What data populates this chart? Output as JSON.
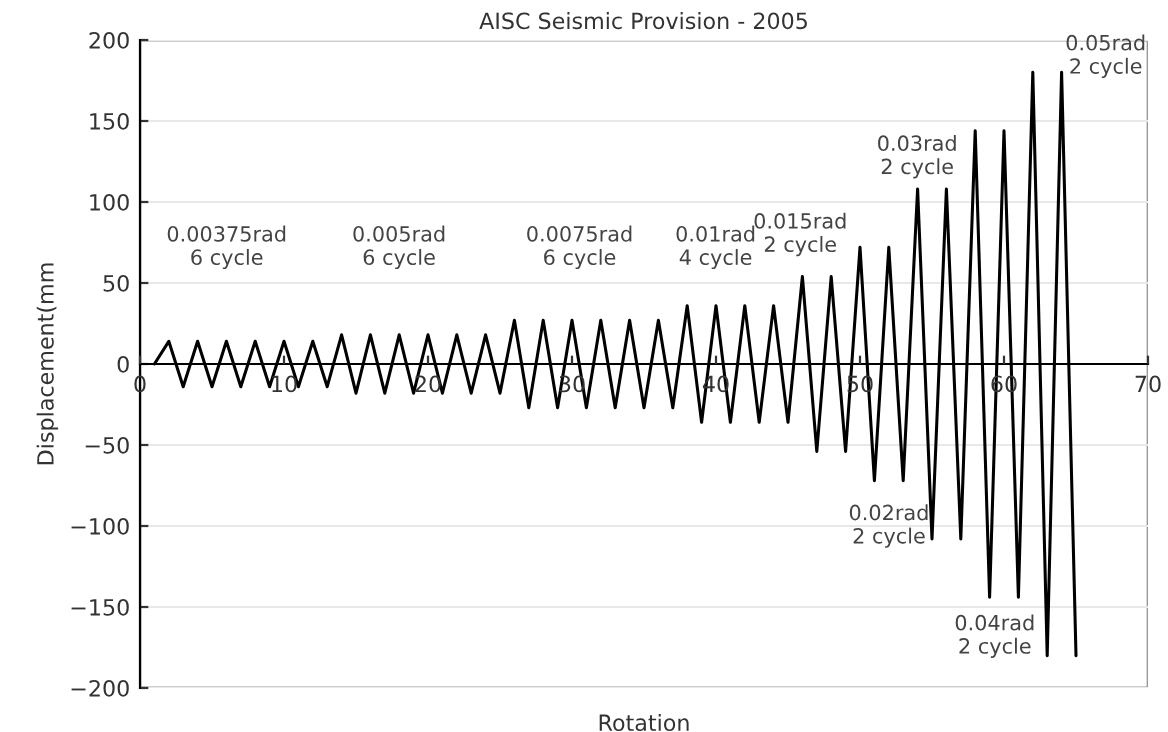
{
  "chart_data": {
    "type": "line",
    "title": "AISC Seismic Provision - 2005",
    "xlabel": "Rotation",
    "ylabel": "Displacement(mm",
    "x": [
      1,
      2,
      3,
      4,
      5,
      6,
      7,
      8,
      9,
      10,
      11,
      12,
      13,
      14,
      15,
      16,
      17,
      18,
      19,
      20,
      21,
      22,
      23,
      24,
      25,
      26,
      27,
      28,
      29,
      30,
      31,
      32,
      33,
      34,
      35,
      36,
      37,
      38,
      39,
      40,
      41,
      42,
      43,
      44,
      45,
      46,
      47,
      48,
      49,
      50,
      51,
      52,
      53,
      54,
      55,
      56,
      57,
      58,
      59,
      60,
      61,
      62,
      63,
      64,
      65
    ],
    "series": [
      {
        "color": "#000000",
        "values": [
          0,
          14,
          -14,
          14,
          -14,
          14,
          -14,
          14,
          -14,
          14,
          -14,
          14,
          -14,
          18,
          -18,
          18,
          -18,
          18,
          -18,
          18,
          -18,
          18,
          -18,
          18,
          -18,
          27,
          -27,
          27,
          -27,
          27,
          -27,
          27,
          -27,
          27,
          -27,
          27,
          -27,
          36,
          -36,
          36,
          -36,
          36,
          -36,
          36,
          -36,
          54,
          -54,
          54,
          -54,
          72,
          -72,
          72,
          -72,
          108,
          -108,
          108,
          -108,
          144,
          -144,
          144,
          -144,
          180,
          -180,
          180,
          -180
        ]
      }
    ],
    "xlim": [
      0,
      70
    ],
    "xticks": [
      0,
      10,
      20,
      30,
      40,
      50,
      60,
      70
    ],
    "ylim": [
      -200,
      200
    ],
    "yticks": [
      -200,
      -150,
      -100,
      -50,
      0,
      50,
      100,
      150,
      200
    ],
    "grid": "y",
    "marker": "none",
    "line_style": "solid",
    "annotations": [
      "0.00375rad\n6 cycle",
      "0.005rad\n6 cycle",
      "0.0075rad\n6 cycle",
      "0.01rad\n4 cycle",
      "0.015rad\n2 cycle",
      "0.02rad\n2 cycle",
      "0.03rad\n2 cycle",
      "0.04rad\n2 cycle",
      "0.05rad\n2 cycle"
    ]
  }
}
